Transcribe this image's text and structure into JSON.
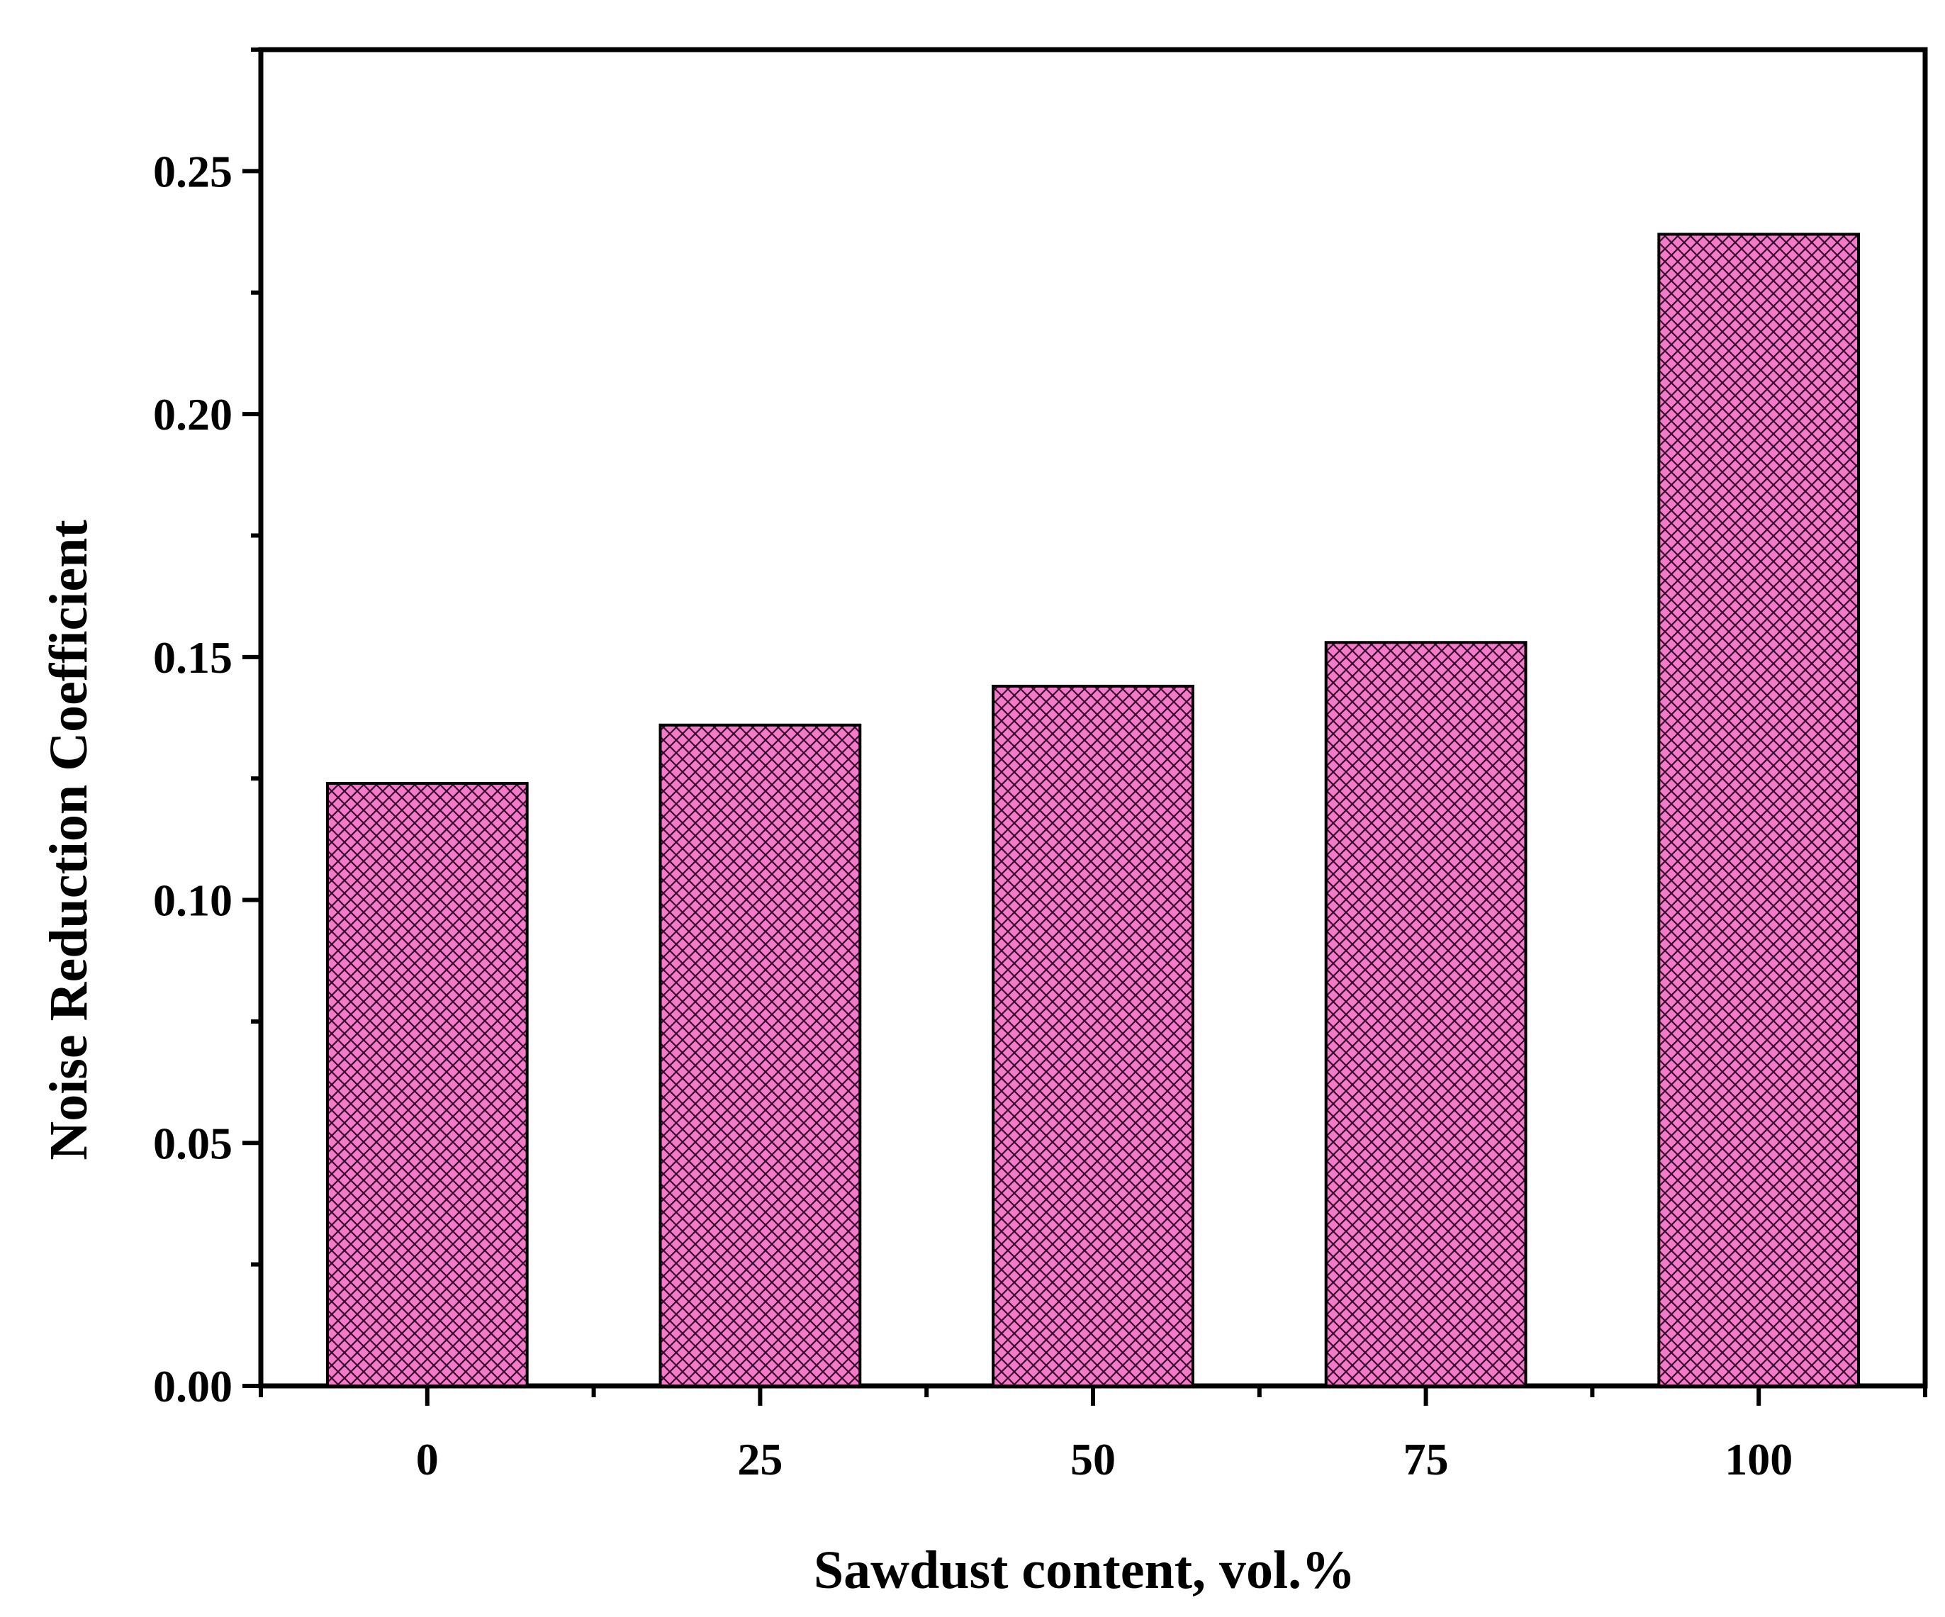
{
  "chart_data": {
    "type": "bar",
    "categories": [
      "0",
      "25",
      "50",
      "75",
      "100"
    ],
    "values": [
      0.124,
      0.136,
      0.144,
      0.153,
      0.237
    ],
    "xlabel": "Sawdust content, vol.%",
    "ylabel": "Noise Reduction Coefficient",
    "ylim": [
      0,
      0.275
    ],
    "yticks": [
      "0.00",
      "0.05",
      "0.10",
      "0.15",
      "0.20",
      "0.25"
    ],
    "grid": false,
    "legend": "none",
    "bar_color": "#f27ac8",
    "hatch_color": "#3a0a2c",
    "pattern": "cross-hatch"
  }
}
